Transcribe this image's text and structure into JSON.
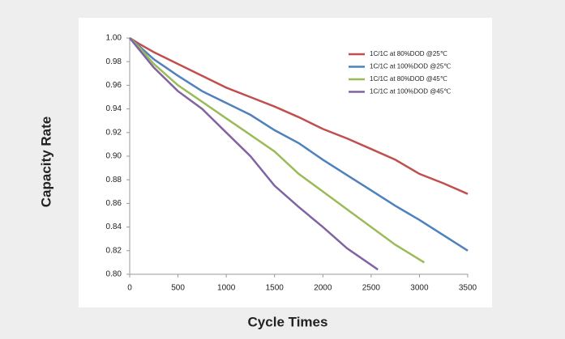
{
  "chart_data": {
    "type": "line",
    "xlabel": "Cycle Times",
    "ylabel": "Capacity Rate",
    "xlim": [
      0,
      3500
    ],
    "xticks": [
      0,
      500,
      1000,
      1500,
      2000,
      2500,
      3000,
      3500
    ],
    "ylim": [
      0.8,
      1.0
    ],
    "yticks": [
      {
        "value": 0.8,
        "label": "0.80"
      },
      0.82,
      0.84,
      0.86,
      0.88,
      {
        "value": 0.9,
        "label": "0.90"
      },
      0.92,
      0.94,
      0.96,
      0.98,
      {
        "value": 1.0,
        "label": "1.00"
      }
    ],
    "grid": false,
    "legend": "upper right",
    "series": [
      {
        "name": "1C/1C at 80%DOD @25℃",
        "color": "#c0504d",
        "x": [
          0,
          100,
          250,
          500,
          750,
          1000,
          1250,
          1500,
          1750,
          2000,
          2250,
          2500,
          2750,
          3000,
          3250,
          3500
        ],
        "values": [
          1.0,
          0.995,
          0.988,
          0.978,
          0.968,
          0.958,
          0.95,
          0.942,
          0.933,
          0.923,
          0.915,
          0.906,
          0.897,
          0.885,
          0.877,
          0.868
        ]
      },
      {
        "name": "1C/1C at 100%DOD @25℃",
        "color": "#4f81bd",
        "x": [
          0,
          100,
          250,
          500,
          750,
          1000,
          1250,
          1500,
          1750,
          2000,
          2250,
          2500,
          2750,
          3000,
          3250,
          3500
        ],
        "values": [
          1.0,
          0.993,
          0.982,
          0.968,
          0.955,
          0.945,
          0.935,
          0.922,
          0.911,
          0.897,
          0.884,
          0.871,
          0.858,
          0.846,
          0.833,
          0.82
        ]
      },
      {
        "name": "1C/1C at 80%DOD @45℃",
        "color": "#9bbb59",
        "x": [
          0,
          100,
          250,
          500,
          750,
          1000,
          1250,
          1500,
          1750,
          2000,
          2250,
          2500,
          2750,
          3050
        ],
        "values": [
          1.0,
          0.992,
          0.978,
          0.96,
          0.946,
          0.932,
          0.918,
          0.904,
          0.885,
          0.87,
          0.855,
          0.84,
          0.825,
          0.81
        ]
      },
      {
        "name": "1C/1C at 100%DOD @45℃",
        "color": "#8064a2",
        "x": [
          0,
          100,
          250,
          500,
          750,
          1000,
          1250,
          1500,
          1750,
          2000,
          2250,
          2570
        ],
        "values": [
          1.0,
          0.99,
          0.975,
          0.955,
          0.94,
          0.92,
          0.9,
          0.875,
          0.857,
          0.84,
          0.822,
          0.804
        ]
      }
    ]
  }
}
